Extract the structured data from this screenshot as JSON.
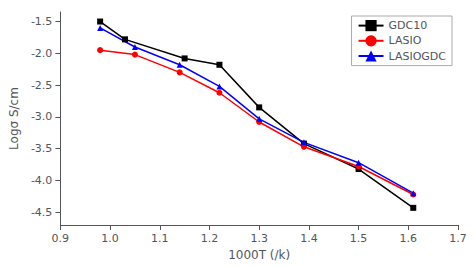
{
  "chart_data": {
    "type": "line",
    "xlabel": "1000T (/k)",
    "ylabel": "Logσ S/cm",
    "xlim": [
      0.9,
      1.7
    ],
    "ylim": [
      -4.7,
      -1.35
    ],
    "xticks": [
      0.9,
      {
        "value": 1,
        "label": "1.0"
      },
      1.1,
      1.2,
      1.3,
      1.4,
      1.5,
      1.6,
      1.7
    ],
    "yticks": [
      -4.5,
      {
        "value": -4,
        "label": "-4.0"
      },
      -3.5,
      {
        "value": -3,
        "label": "-3.0"
      },
      -2.5,
      {
        "value": -2,
        "label": "-2.0"
      },
      -1.5
    ],
    "grid": false,
    "legend": "upper right",
    "series": [
      {
        "name": "GDC10",
        "color": "#000000",
        "marker": "square",
        "line_style": "solid",
        "x": [
          0.98,
          1.03,
          1.15,
          1.22,
          1.3,
          1.39,
          1.5,
          1.61
        ],
        "values": [
          -1.5,
          -1.78,
          -2.08,
          -2.18,
          -2.85,
          -3.42,
          -3.82,
          -4.43
        ]
      },
      {
        "name": "LASIO",
        "color": "#ff0000",
        "marker": "circle",
        "line_style": "solid",
        "x": [
          0.98,
          1.05,
          1.14,
          1.22,
          1.3,
          1.39,
          1.5,
          1.61
        ],
        "values": [
          -1.95,
          -2.02,
          -2.3,
          -2.62,
          -3.08,
          -3.47,
          -3.78,
          -4.22
        ]
      },
      {
        "name": "LASIOGDC",
        "color": "#0000ff",
        "marker": "triangle",
        "line_style": "solid",
        "x": [
          0.98,
          1.05,
          1.14,
          1.22,
          1.3,
          1.39,
          1.5,
          1.61
        ],
        "values": [
          -1.6,
          -1.9,
          -2.18,
          -2.52,
          -3.03,
          -3.4,
          -3.72,
          -4.2
        ]
      }
    ]
  }
}
